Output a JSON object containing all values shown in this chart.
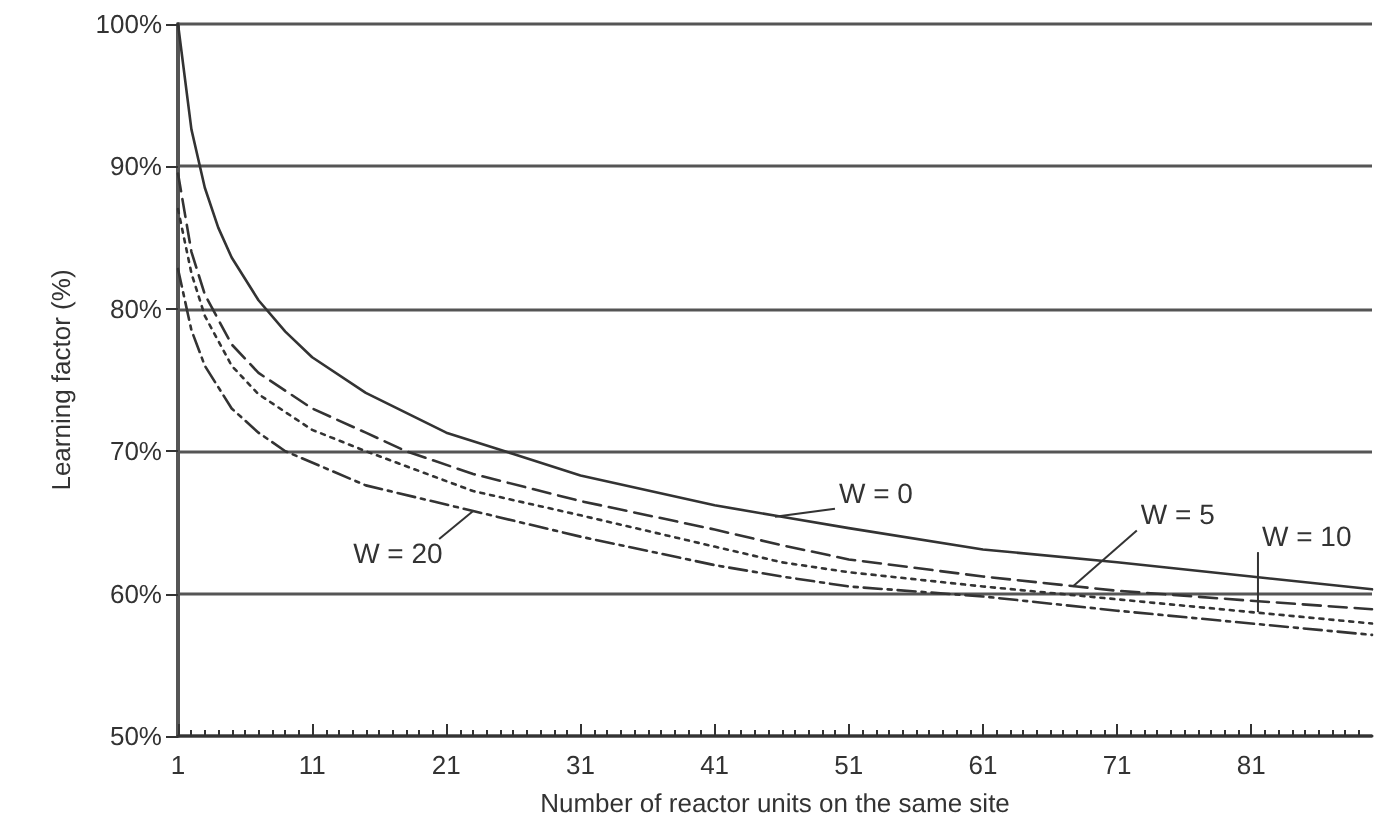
{
  "chart_data": {
    "type": "line",
    "xlabel": "Number of reactor units on the same site",
    "ylabel": "Learning factor (%)",
    "xlim": [
      1,
      90
    ],
    "xticks": [
      1,
      11,
      21,
      31,
      41,
      51,
      61,
      71,
      81,
      {
        "value": 2,
        "label": null
      },
      {
        "value": 3,
        "label": null
      },
      {
        "value": 4,
        "label": null
      },
      {
        "value": 5,
        "label": null
      },
      {
        "value": 6,
        "label": null
      },
      {
        "value": 7,
        "label": null
      },
      {
        "value": 8,
        "label": null
      },
      {
        "value": 9,
        "label": null
      },
      {
        "value": 10,
        "label": null
      },
      {
        "value": 12,
        "label": null
      },
      {
        "value": 13,
        "label": null
      },
      {
        "value": 14,
        "label": null
      },
      {
        "value": 15,
        "label": null
      },
      {
        "value": 16,
        "label": null
      },
      {
        "value": 17,
        "label": null
      },
      {
        "value": 18,
        "label": null
      },
      {
        "value": 19,
        "label": null
      },
      {
        "value": 20,
        "label": null
      },
      {
        "value": 22,
        "label": null
      },
      {
        "value": 23,
        "label": null
      },
      {
        "value": 24,
        "label": null
      },
      {
        "value": 25,
        "label": null
      },
      {
        "value": 26,
        "label": null
      },
      {
        "value": 27,
        "label": null
      },
      {
        "value": 28,
        "label": null
      },
      {
        "value": 29,
        "label": null
      },
      {
        "value": 30,
        "label": null
      },
      {
        "value": 32,
        "label": null
      },
      {
        "value": 33,
        "label": null
      },
      {
        "value": 34,
        "label": null
      },
      {
        "value": 35,
        "label": null
      },
      {
        "value": 36,
        "label": null
      },
      {
        "value": 37,
        "label": null
      },
      {
        "value": 38,
        "label": null
      },
      {
        "value": 39,
        "label": null
      },
      {
        "value": 40,
        "label": null
      },
      {
        "value": 42,
        "label": null
      },
      {
        "value": 43,
        "label": null
      },
      {
        "value": 44,
        "label": null
      },
      {
        "value": 45,
        "label": null
      },
      {
        "value": 46,
        "label": null
      },
      {
        "value": 47,
        "label": null
      },
      {
        "value": 48,
        "label": null
      },
      {
        "value": 49,
        "label": null
      },
      {
        "value": 50,
        "label": null
      },
      {
        "value": 52,
        "label": null
      },
      {
        "value": 53,
        "label": null
      },
      {
        "value": 54,
        "label": null
      },
      {
        "value": 55,
        "label": null
      },
      {
        "value": 56,
        "label": null
      },
      {
        "value": 57,
        "label": null
      },
      {
        "value": 58,
        "label": null
      },
      {
        "value": 59,
        "label": null
      },
      {
        "value": 60,
        "label": null
      },
      {
        "value": 62,
        "label": null
      },
      {
        "value": 63,
        "label": null
      },
      {
        "value": 64,
        "label": null
      },
      {
        "value": 65,
        "label": null
      },
      {
        "value": 66,
        "label": null
      },
      {
        "value": 67,
        "label": null
      },
      {
        "value": 68,
        "label": null
      },
      {
        "value": 69,
        "label": null
      },
      {
        "value": 70,
        "label": null
      },
      {
        "value": 72,
        "label": null
      },
      {
        "value": 73,
        "label": null
      },
      {
        "value": 74,
        "label": null
      },
      {
        "value": 75,
        "label": null
      },
      {
        "value": 76,
        "label": null
      },
      {
        "value": 77,
        "label": null
      },
      {
        "value": 78,
        "label": null
      },
      {
        "value": 79,
        "label": null
      },
      {
        "value": 80,
        "label": null
      },
      {
        "value": 82,
        "label": null
      },
      {
        "value": 83,
        "label": null
      },
      {
        "value": 84,
        "label": null
      },
      {
        "value": 85,
        "label": null
      },
      {
        "value": 86,
        "label": null
      },
      {
        "value": 87,
        "label": null
      },
      {
        "value": 88,
        "label": null
      },
      {
        "value": 89,
        "label": null
      }
    ],
    "ylim": [
      50,
      100
    ],
    "yticks": [
      {
        "value": 50,
        "label": "50%"
      },
      {
        "value": 60,
        "label": "60%"
      },
      {
        "value": 70,
        "label": "70%"
      },
      {
        "value": 80,
        "label": "80%"
      },
      {
        "value": 90,
        "label": "90%"
      },
      {
        "value": 100,
        "label": "100%"
      }
    ],
    "grid": "y",
    "marker": "none",
    "series": [
      {
        "color": "#333333",
        "line_style": "solid",
        "x": [
          1,
          2,
          3,
          4,
          5,
          7,
          9,
          11,
          15,
          21,
          26,
          31,
          41,
          46,
          51,
          61,
          71,
          81,
          90
        ],
        "values": [
          100,
          92.6,
          88.5,
          85.7,
          83.6,
          80.6,
          78.4,
          76.6,
          74.1,
          71.3,
          69.8,
          68.3,
          66.2,
          65.4,
          64.6,
          63.1,
          62.2,
          61.2,
          60.3
        ]
      },
      {
        "color": "#333333",
        "line_style": "dashed",
        "x": [
          1,
          2,
          3,
          5,
          7,
          11,
          15,
          18,
          23,
          31,
          41,
          46,
          51,
          61,
          68,
          71,
          81,
          90
        ],
        "values": [
          89.5,
          84,
          81,
          77.5,
          75.5,
          73,
          71.3,
          70,
          68.4,
          66.5,
          64.5,
          63.4,
          62.4,
          61.2,
          60.5,
          60.2,
          59.5,
          58.9
        ]
      },
      {
        "color": "#333333",
        "line_style": "dotted",
        "x": [
          1,
          2,
          3,
          5,
          7,
          11,
          15,
          23,
          31,
          41,
          46,
          51,
          61,
          71,
          81,
          90
        ],
        "values": [
          87,
          82.5,
          79.5,
          76,
          74,
          71.5,
          70,
          67.2,
          65.5,
          63.3,
          62.2,
          61.5,
          60.5,
          59.6,
          58.7,
          57.9
        ]
      },
      {
        "color": "#333333",
        "line_style": "dashdot",
        "x": [
          1,
          2,
          3,
          5,
          7,
          9,
          15,
          23,
          31,
          41,
          46,
          51,
          61,
          71,
          81,
          90
        ],
        "values": [
          82.8,
          78.5,
          76,
          73,
          71.3,
          70,
          67.6,
          65.8,
          64,
          62,
          61.2,
          60.5,
          59.8,
          58.8,
          57.9,
          57.1
        ]
      }
    ],
    "annotations": [
      {
        "text": "W = 0",
        "x": 45.5,
        "y": 65.4
      },
      {
        "text": "W = 5",
        "x": 67.7,
        "y": 60.5
      },
      {
        "text": "W = 10",
        "x": 81.5,
        "y": 58.7
      },
      {
        "text": "W = 20",
        "x": 23,
        "y": 65.8
      }
    ]
  }
}
